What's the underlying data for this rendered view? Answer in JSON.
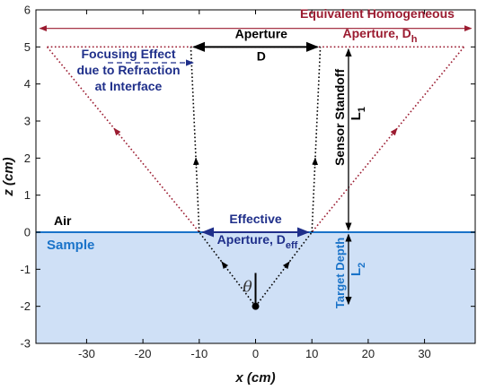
{
  "colors": {
    "dark_red": "#9b1b30",
    "navy": "#1f2f8a",
    "sample_blue": "#1a73c9",
    "sample_fill": "#cfe0f6",
    "black": "#000000"
  },
  "axes": {
    "xlabel": "x (cm)",
    "ylabel": "z (cm)",
    "xlim": [
      -39,
      39
    ],
    "ylim": [
      -3,
      6
    ],
    "xticks": [
      "-30",
      "-20",
      "-10",
      "0",
      "10",
      "20",
      "30"
    ],
    "xtick_values": [
      -30,
      -20,
      -10,
      0,
      10,
      20,
      30
    ],
    "yticks": [
      "-3",
      "-2",
      "-1",
      "0",
      "1",
      "2",
      "3",
      "4",
      "5",
      "6"
    ],
    "ytick_values": [
      -3,
      -2,
      -1,
      0,
      1,
      2,
      3,
      4,
      5,
      6
    ]
  },
  "regions": {
    "air": "Air",
    "sample": "Sample"
  },
  "labels": {
    "equiv_line1": "Equivalent Homogeneous",
    "equiv_line2": "Aperture, D",
    "equiv_sub": "h",
    "aperture_line1": "Aperture",
    "aperture_line2": "D",
    "focus_line1": "Focusing Effect",
    "focus_line2": "due to Refraction",
    "focus_line3": "at Interface",
    "effective_line1": "Effective",
    "effective_line2": "Aperture, D",
    "effective_sub": "eff",
    "standoff": "Sensor Standoff",
    "l1": "L",
    "l1_sub": "1",
    "target_depth": "Target Depth",
    "l2": "L",
    "l2_sub": "2",
    "theta": "θ"
  },
  "geometry_data": {
    "target": [
      0,
      -2
    ],
    "interface_z": 0,
    "aperture_z": 5,
    "aperture_x": [
      -11.5,
      11.5
    ],
    "effective_x": [
      -10,
      10
    ],
    "equivalent_x": [
      -37,
      37
    ],
    "standoff_x": 16.5,
    "equiv_top_z": 5.5,
    "theta_line_top_z": -1.1
  }
}
